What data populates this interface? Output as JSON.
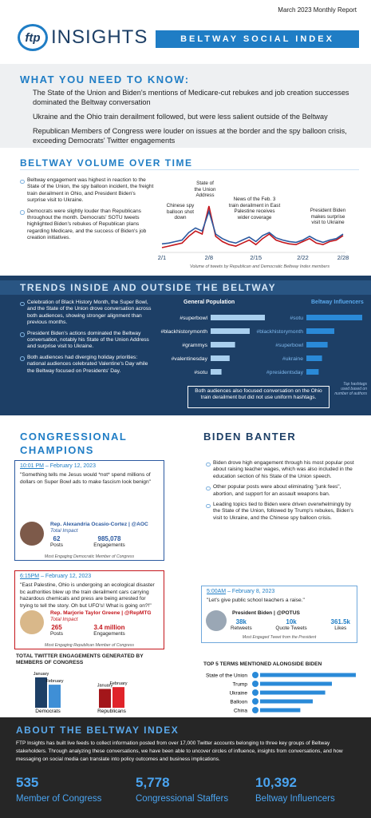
{
  "header": {
    "report_date": "March 2023 Monthly Report",
    "logo": "ftp",
    "brand": "INSIGHTS",
    "banner": "BELTWAY SOCIAL INDEX"
  },
  "need_to_know": {
    "title": "WHAT YOU NEED TO KNOW:",
    "items": [
      "The State of the Union and Biden's mentions of Medicare-cut rebukes and job creation successes dominated the Beltway conversation",
      "Ukraine and the Ohio train derailment followed, but were less salient outside of the Beltway",
      "Republican Members of Congress were louder on issues at the border and the spy balloon crisis, exceeding Democrats' Twitter engagements"
    ]
  },
  "volume": {
    "title": "BELTWAY VOLUME OVER TIME",
    "bullets": [
      "Beltway engagement was highest in reaction to the State of the Union, the spy balloon incident, the freight train derailment in Ohio, and President Biden's surprise visit to Ukraine.",
      "Democrats were slightly louder than Republicans throughout the month. Democrats' SOTU tweets highlighted Biden's rebukes of Republican plans regarding Medicare, and the success of Biden's job creation initiatives."
    ],
    "chart": {
      "type": "line",
      "caption": "Volume of tweets by Republican and Democratic Beltway Index members",
      "annotations": [
        "Chinese spy balloon shot down",
        "State of the Union Address",
        "News of the Feb. 3 train derailment in East Palestine receives wider coverage",
        "President Biden makes surprise visit to Ukraine"
      ],
      "categories": [
        "2/1",
        null,
        null,
        null,
        null,
        null,
        null,
        "2/8",
        null,
        null,
        null,
        null,
        null,
        null,
        "2/15",
        null,
        null,
        null,
        null,
        null,
        null,
        "2/22",
        null,
        null,
        null,
        null,
        null,
        "2/28"
      ],
      "series": [
        {
          "color": "#c4161c",
          "values": [
            40,
            42,
            44,
            46,
            55,
            62,
            58,
            95,
            55,
            48,
            44,
            42,
            46,
            50,
            44,
            52,
            58,
            50,
            47,
            45,
            44,
            48,
            52,
            46,
            44,
            48,
            50,
            56
          ]
        },
        {
          "color": "#2c5aa0",
          "values": [
            45,
            46,
            48,
            50,
            60,
            66,
            62,
            88,
            58,
            52,
            48,
            46,
            50,
            54,
            48,
            56,
            60,
            53,
            50,
            48,
            47,
            50,
            55,
            50,
            47,
            50,
            52,
            58
          ]
        }
      ]
    }
  },
  "trends": {
    "title": "TRENDS INSIDE AND OUTSIDE THE BELTWAY",
    "bullets": [
      "Celebration of Black History Month, the Super Bowl, and the State of the Union drove conversation across both audiences, showing stronger alignment than previous months.",
      "President Biden's actions dominated the Beltway conversation, notably his State of the Union Address and surprise visit to Ukraine.",
      "Both audiences had diverging holiday priorities: national audiences celebrated Valentine's Day while the Beltway focused on Presidents' Day."
    ],
    "note": "Top hashtags used based on number of authors",
    "box": "Both audiences also focused conversation on the Ohio train derailment but did not use uniform hashtags.",
    "charts": [
      {
        "type": "bar",
        "title": "General Population",
        "color": "#a9cfee",
        "categories": [
          "#superbowl",
          "#blackhistorymonth",
          "#grammys",
          "#valentinesday",
          "#sotu"
        ],
        "values": [
          100,
          72,
          45,
          35,
          20
        ]
      },
      {
        "type": "bar",
        "title": "Beltway Influencers",
        "color": "#2a8ad8",
        "categories": [
          "#sotu",
          "#blackhistorymonth",
          "#superbowl",
          "#ukraine",
          "#presidentsday"
        ],
        "values": [
          100,
          50,
          38,
          28,
          22
        ]
      }
    ]
  },
  "champions": {
    "title": "CONGRESSIONAL CHAMPIONS",
    "tweets": [
      {
        "time": "10:01 PM",
        "date": "February 12, 2023",
        "text": "\"Something tells me Jesus would *not* spend millions of dollars on Super Bowl ads to make fascism look benign\"",
        "name": "Rep. Alexandria Ocasio-Cortez | @AOC",
        "impact": "Total Impact",
        "posts": "62",
        "posts_label": "Posts",
        "engagements": "985,078",
        "engagements_label": "Engagements",
        "caption": "Most Engaging Democratic Member of Congress"
      },
      {
        "time": "6:15PM",
        "date": "February 12, 2023",
        "text": "\"East Palestine, Ohio is undergoing an ecological disaster bc authorities blew up the train derailment cars carrying hazardous chemicals and press are being arrested for trying to tell the story. Oh but UFO's! What is going on?!\"",
        "name": "Rep. Marjorie Taylor Greene | @RepMTG",
        "impact": "Total Impact",
        "posts": "265",
        "posts_label": "Posts",
        "engagements": "3.4 million",
        "engagements_label": "Engagements",
        "caption": "Most Engaging Republican Member of Congress"
      }
    ],
    "chart": {
      "type": "bar",
      "title": "TOTAL TWITTER ENGAGEMENTS GENERATED BY MEMBERS OF CONGRESS",
      "categories": [
        "Democrats",
        "Republicans"
      ],
      "series": [
        {
          "name": "January",
          "colors": [
            "#1d3f66",
            "#a3161a"
          ],
          "values": [
            100,
            62
          ]
        },
        {
          "name": "February",
          "colors": [
            "#3f8fd6",
            "#e0242a"
          ],
          "values": [
            76,
            68
          ]
        }
      ]
    }
  },
  "biden": {
    "title": "BIDEN BANTER",
    "bullets": [
      "Biden drove high engagement through his most popular post about raising teacher wages, which was also included in the education section of his State of the Union speech.",
      "Other popular posts were about eliminating \"junk fees\", abortion, and support for an assault weapons ban.",
      "Leading topics tied to Biden were driven overwhelmingly by the State of the Union, followed by Trump's rebukes, Biden's visit to Ukraine, and the Chinese spy balloon crisis."
    ],
    "tweet": {
      "time": "5:00AM",
      "date": "February 8, 2023",
      "text": "\"Let's give public school teachers a raise.\"",
      "name": "President Biden | @POTUS",
      "stats": [
        {
          "value": "38k",
          "label": "Retweets"
        },
        {
          "value": "10k",
          "label": "Quote Tweets"
        },
        {
          "value": "361.5k",
          "label": "Likes"
        }
      ],
      "caption": "Most Engaged Tweet from the President"
    },
    "chart": {
      "type": "bar",
      "title": "TOP 5 TERMS MENTIONED ALONGSIDE BIDEN",
      "color": "#2a8ad8",
      "categories": [
        "State of the Union",
        "Trump",
        "Ukraine",
        "Balloon",
        "China"
      ],
      "values": [
        100,
        75,
        68,
        55,
        42
      ]
    }
  },
  "about": {
    "title": "ABOUT THE BELTWAY INDEX",
    "text": "FTP Insights has built live feeds to collect information posted from over 17,000 Twitter accounts belonging to three key groups of Beltway stakeholders. Through analyzing these conversations, we have been able to uncover circles of influence, insights from conversations, and how messaging on social media can translate into policy outcomes and business implications.",
    "stats": [
      {
        "value": "535",
        "label": "Member of Congress"
      },
      {
        "value": "5,778",
        "label": "Congressional Staffers"
      },
      {
        "value": "10,392",
        "label": "Beltway Influencers"
      }
    ]
  }
}
